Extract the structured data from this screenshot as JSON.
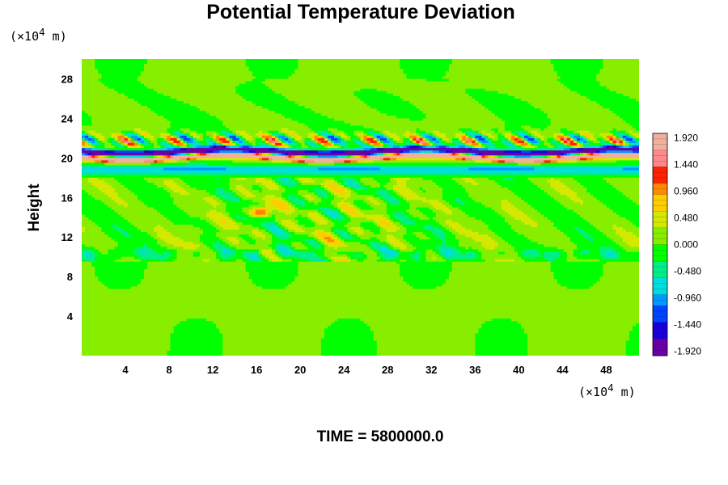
{
  "chart_data": {
    "type": "heatmap",
    "title": "Potential Temperature Deviation",
    "ylabel": "Height",
    "y_unit": "(×10",
    "y_unit_exp": "4",
    "y_unit_tail": " m)",
    "x_unit": "(×10",
    "x_unit_exp": "4",
    "x_unit_tail": " m)",
    "xlim": [
      0,
      51
    ],
    "ylim": [
      0,
      30
    ],
    "x_ticks": [
      4,
      8,
      12,
      16,
      20,
      24,
      28,
      32,
      36,
      40,
      44,
      48
    ],
    "y_ticks": [
      4,
      8,
      12,
      16,
      20,
      24,
      28
    ],
    "colorbar": {
      "range": [
        -2.0,
        2.0
      ],
      "tick_values": [
        1.92,
        1.44,
        0.96,
        0.48,
        0.0,
        -0.48,
        -0.96,
        -1.44,
        -1.92
      ],
      "tick_labels": [
        "1.920",
        "1.440",
        "0.960",
        "0.480",
        "0.000",
        "-0.480",
        "-0.960",
        "-1.440",
        "-1.920"
      ],
      "colors_low_to_high": [
        "#6a00a8",
        "#1a00d8",
        "#0044ff",
        "#0099ff",
        "#00dddd",
        "#00ee88",
        "#00ff00",
        "#88ee00",
        "#d4e800",
        "#ffcc00",
        "#ff8800",
        "#ff2200",
        "#ff8888",
        "#f0b0a0"
      ]
    },
    "field_description_values": {
      "background": 0.05,
      "strong_band_center_y": 20.3,
      "strong_band_amplitude": 2.0,
      "upper_wave_layer_y": [
        21,
        23
      ],
      "lower_turbulent_layer_y": [
        9.5,
        18
      ]
    }
  },
  "footer": {
    "time_label": "TIME = 5800000.0"
  }
}
